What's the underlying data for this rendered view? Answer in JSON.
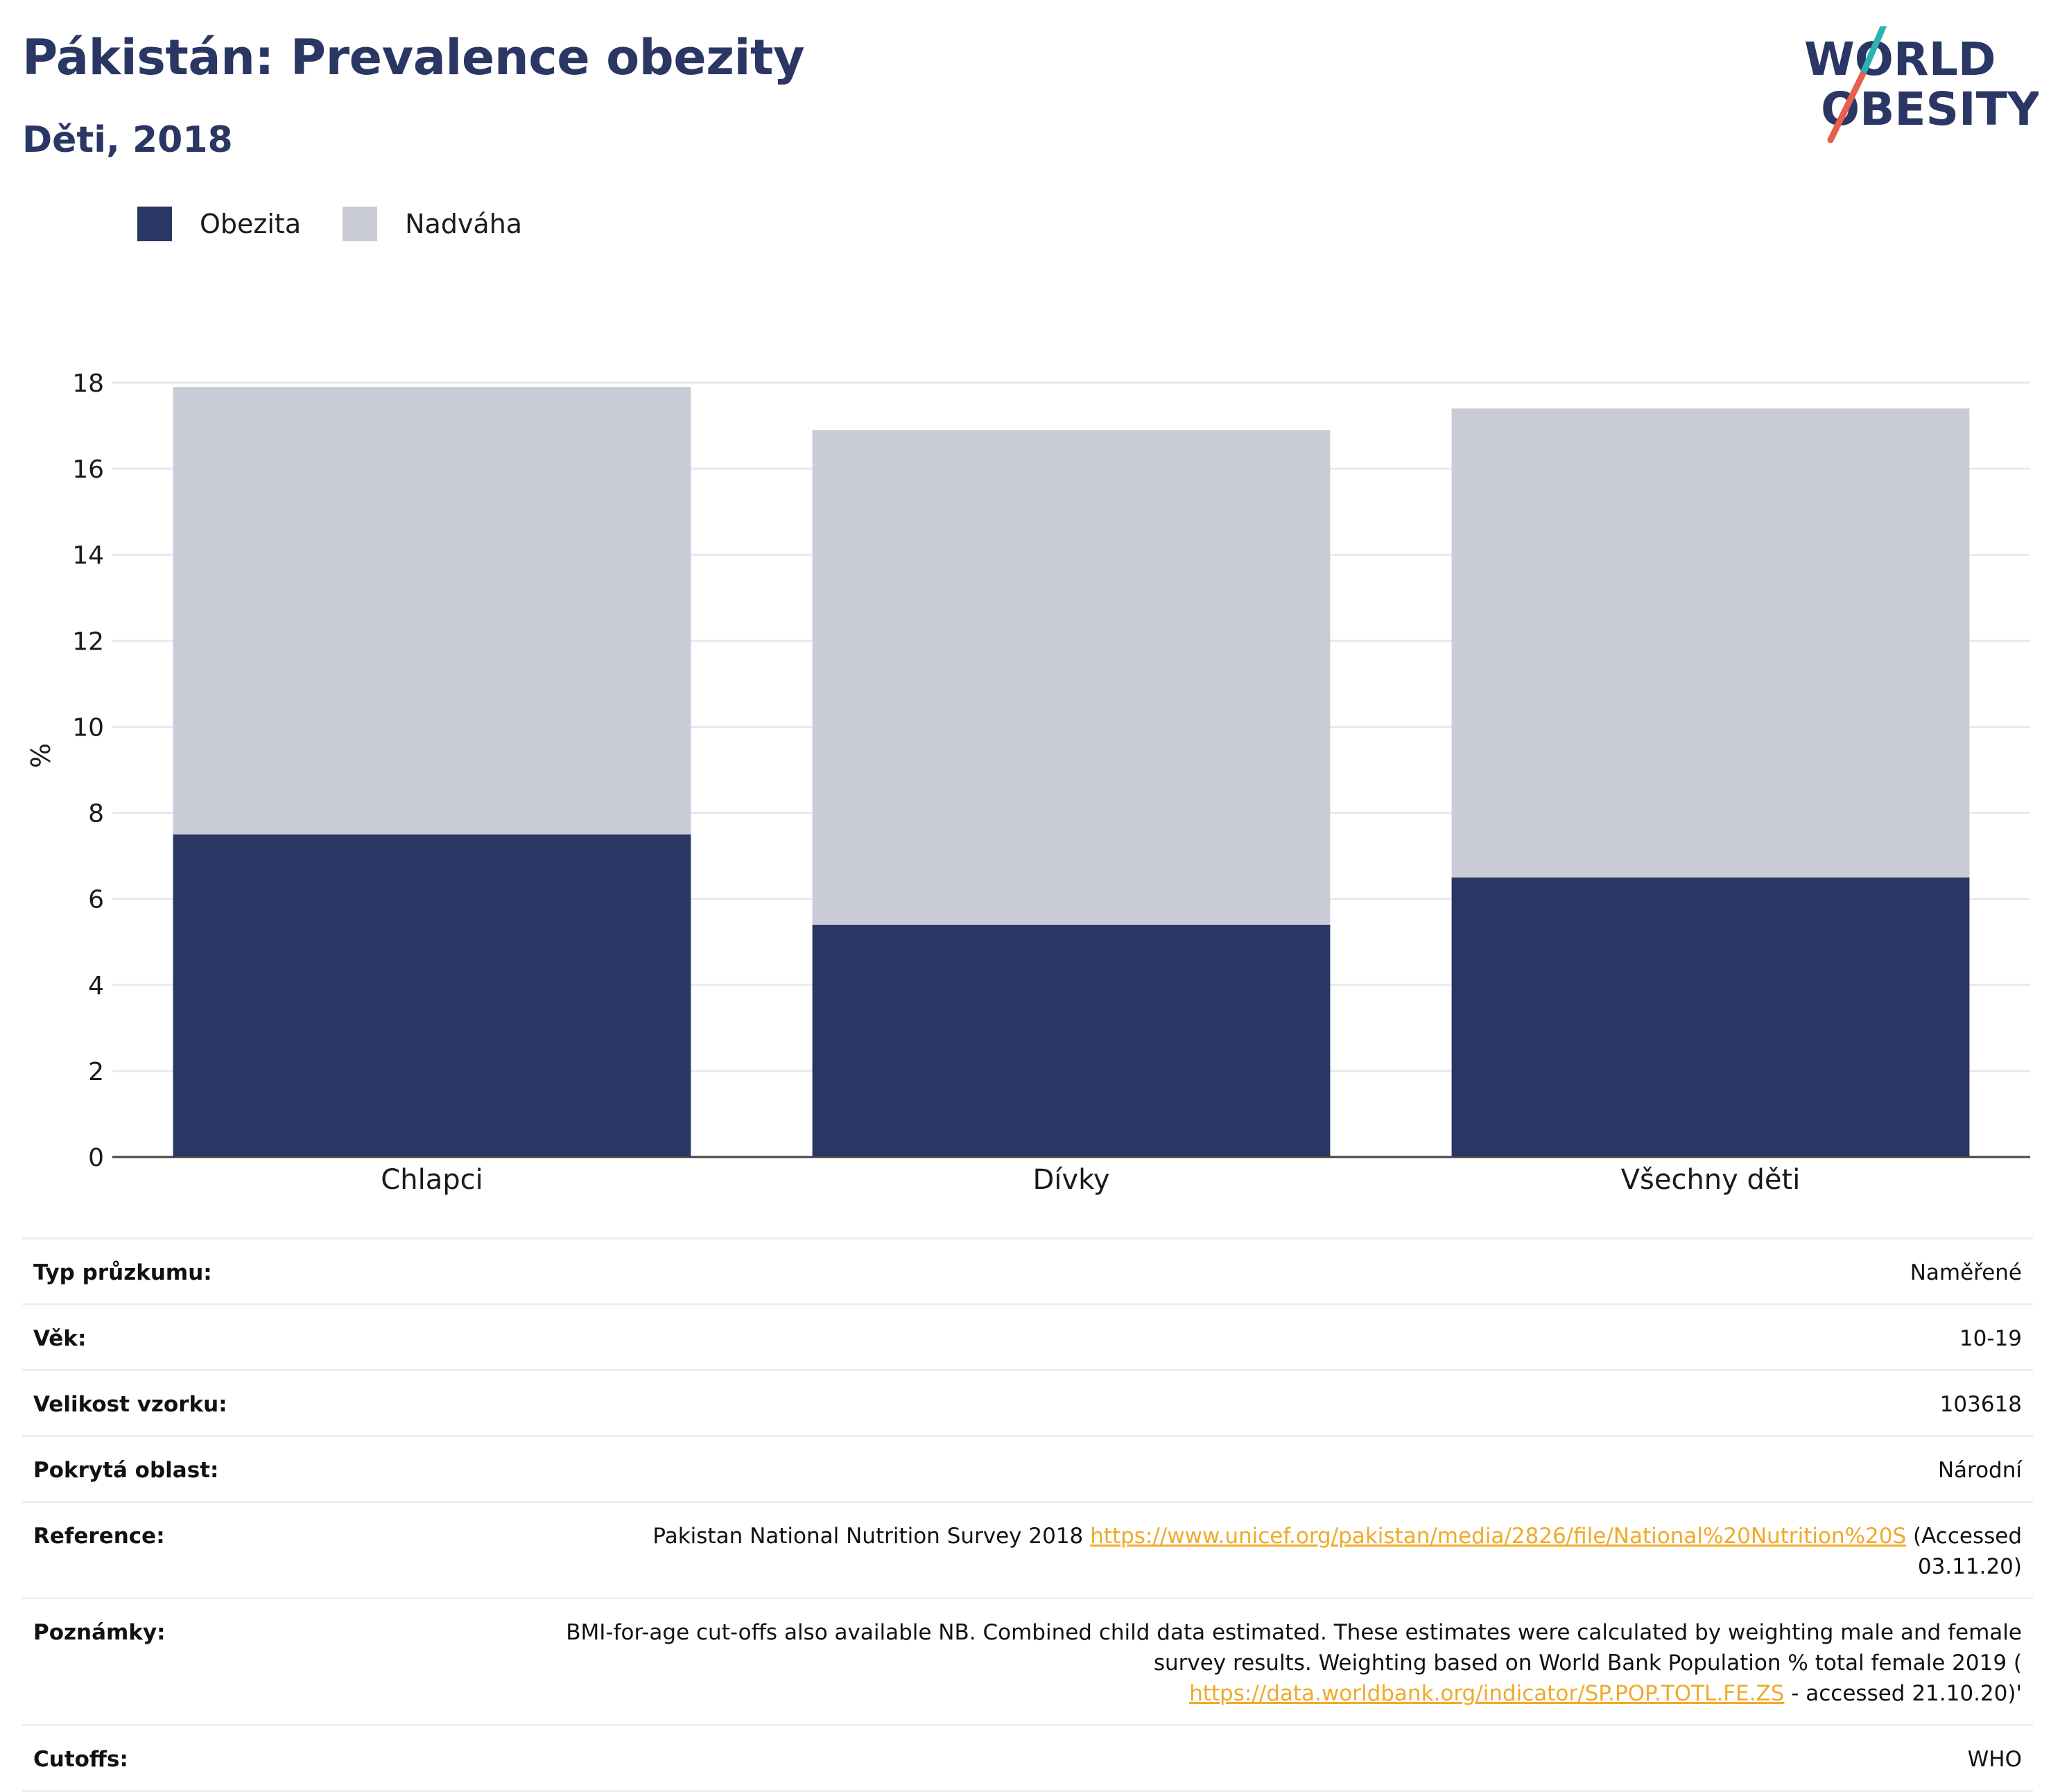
{
  "header": {
    "title": "Pákistán: Prevalence obezity",
    "subtitle": "Děti, 2018"
  },
  "logo": {
    "line1": "WORLD",
    "line2": "OBESITY",
    "accent_colors": [
      "#2bb3b1",
      "#e8604c"
    ]
  },
  "legend": [
    {
      "label": "Obezita",
      "color": "#2a3663"
    },
    {
      "label": "Nadváha",
      "color": "#c9ccd7"
    }
  ],
  "chart_data": {
    "type": "bar",
    "stacked": true,
    "categories": [
      "Chlapci",
      "Dívky",
      "Všechny děti"
    ],
    "series": [
      {
        "name": "Obezita",
        "values": [
          7.5,
          5.4,
          6.5
        ],
        "color": "#2a3663"
      },
      {
        "name": "Nadváha",
        "values": [
          10.4,
          11.5,
          10.9
        ],
        "color": "#c9ccd7"
      }
    ],
    "ylabel": "%",
    "ylim": [
      0,
      18
    ],
    "yticks": [
      0,
      2,
      4,
      6,
      8,
      10,
      12,
      14,
      16,
      18
    ],
    "grid": true,
    "legend_position": "top-left"
  },
  "info": {
    "survey_type_label": "Typ průzkumu:",
    "survey_type_value": "Naměřené",
    "age_label": "Věk:",
    "age_value": "10-19",
    "sample_label": "Velikost vzorku:",
    "sample_value": "103618",
    "area_label": "Pokrytá oblast:",
    "area_value": "Národní",
    "reference_label": "Reference:",
    "reference_text": "Pakistan National Nutrition Survey 2018",
    "reference_link": "https://www.unicef.org/pakistan/media/2826/file/National%20Nutrition%20S",
    "reference_suffix_1": "(Accessed",
    "reference_suffix_2": "03.11.20)",
    "notes_label": "Poznámky:",
    "notes_line1": "BMI-for-age cut-offs also available NB. Combined child data estimated. These estimates were calculated by weighting male and female",
    "notes_line2": "survey results. Weighting based on World Bank Population % total female 2019 (",
    "notes_link": "https://data.worldbank.org/indicator/SP.POP.TOTL.FE.ZS",
    "notes_suffix": " - accessed 21.10.20)'",
    "cutoffs_label": "Cutoffs:",
    "cutoffs_value": "WHO"
  }
}
